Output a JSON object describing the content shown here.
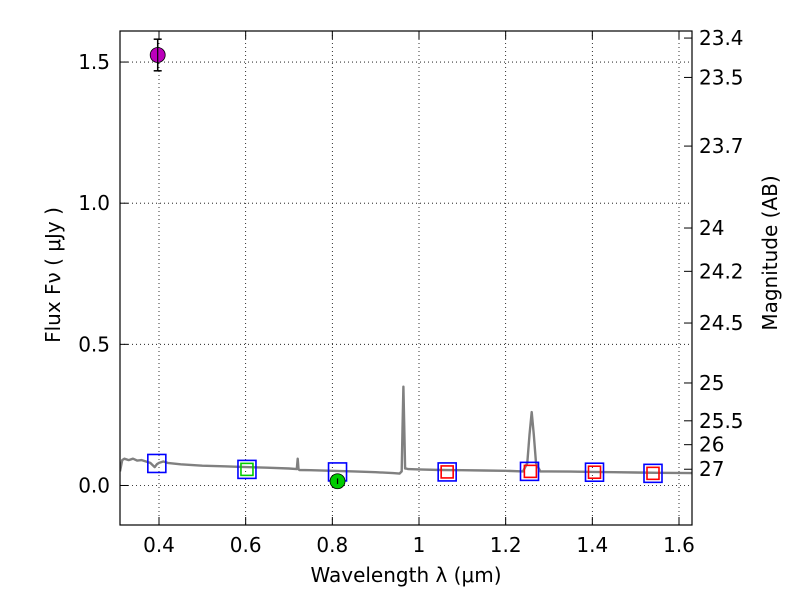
{
  "chart_data": {
    "type": "scatter",
    "xlabel": "Wavelength  λ (μm)",
    "ylabel": "Flux  Fν  ( μJy )",
    "ylabel_right": "Magnitude (AB)",
    "xlim": [
      0.31,
      1.63
    ],
    "ylim": [
      -0.14,
      1.61
    ],
    "grid": true,
    "x_ticks": [
      0.4,
      0.6,
      0.8,
      1.0,
      1.2,
      1.4,
      1.6
    ],
    "x_tick_labels": [
      "0.4",
      "0.6",
      "0.8",
      "1",
      "1.2",
      "1.4",
      "1.6"
    ],
    "y_ticks": [
      0.0,
      0.5,
      1.0,
      1.5
    ],
    "y_tick_labels": [
      "0.0",
      "0.5",
      "1.0",
      "1.5"
    ],
    "mag_ticks": [
      "23.4",
      "23.5",
      "23.7",
      "24",
      "24.2",
      "24.5",
      "25",
      "25.5",
      "26",
      "27"
    ],
    "series": [
      {
        "name": "model-spectrum",
        "kind": "line",
        "color": "#808080",
        "x": [
          0.31,
          0.315,
          0.32,
          0.33,
          0.34,
          0.35,
          0.36,
          0.37,
          0.38,
          0.39,
          0.395,
          0.4,
          0.41,
          0.42,
          0.45,
          0.5,
          0.55,
          0.6,
          0.65,
          0.7,
          0.718,
          0.72,
          0.722,
          0.724,
          0.75,
          0.8,
          0.85,
          0.9,
          0.94,
          0.955,
          0.96,
          0.962,
          0.964,
          0.966,
          0.968,
          0.97,
          0.975,
          1.0,
          1.05,
          1.1,
          1.15,
          1.2,
          1.24,
          1.25,
          1.255,
          1.26,
          1.265,
          1.27,
          1.28,
          1.3,
          1.35,
          1.4,
          1.45,
          1.5,
          1.55,
          1.63
        ],
        "y": [
          0.05,
          0.09,
          0.095,
          0.09,
          0.095,
          0.088,
          0.09,
          0.085,
          0.08,
          0.065,
          0.075,
          0.08,
          0.085,
          0.08,
          0.075,
          0.07,
          0.068,
          0.065,
          0.063,
          0.06,
          0.058,
          0.095,
          0.058,
          0.055,
          0.054,
          0.052,
          0.05,
          0.047,
          0.044,
          0.042,
          0.05,
          0.2,
          0.35,
          0.2,
          0.06,
          0.06,
          0.058,
          0.057,
          0.055,
          0.054,
          0.053,
          0.052,
          0.05,
          0.08,
          0.18,
          0.26,
          0.18,
          0.08,
          0.05,
          0.05,
          0.049,
          0.048,
          0.047,
          0.046,
          0.045,
          0.044
        ]
      },
      {
        "name": "blue-squares",
        "kind": "open-square",
        "color": "#0000ff",
        "x": [
          0.395,
          0.603,
          0.812,
          1.065,
          1.255,
          1.405,
          1.54
        ],
        "y": [
          0.078,
          0.057,
          0.048,
          0.048,
          0.05,
          0.047,
          0.043
        ]
      },
      {
        "name": "red-squares",
        "kind": "open-square",
        "color": "#ff0000",
        "x": [
          1.065,
          1.257,
          1.405,
          1.54
        ],
        "y": [
          0.048,
          0.05,
          0.047,
          0.043
        ]
      },
      {
        "name": "green-squares",
        "kind": "open-square",
        "color": "#00cc00",
        "x": [
          0.603
        ],
        "y": [
          0.057
        ]
      },
      {
        "name": "magenta-point",
        "kind": "point",
        "color": "#bb00bb",
        "x": [
          0.397
        ],
        "y": [
          1.525
        ],
        "yerr": [
          0.056
        ]
      },
      {
        "name": "green-point",
        "kind": "point",
        "color": "#00cc00",
        "x": [
          0.812
        ],
        "y": [
          0.015
        ],
        "yerr": [
          0.01
        ]
      }
    ]
  }
}
